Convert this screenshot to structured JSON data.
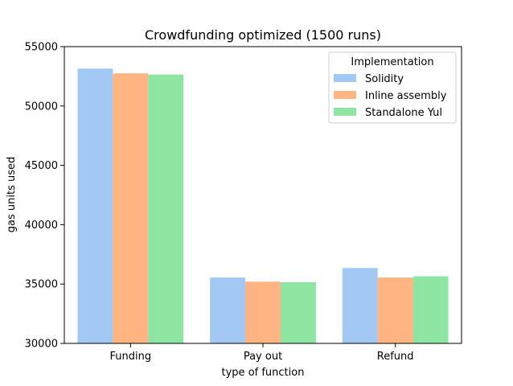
{
  "chart_data": {
    "type": "bar",
    "title": "Crowdfunding optimized (1500 runs)",
    "xlabel": "type of function",
    "ylabel": "gas units used",
    "categories": [
      "Funding",
      "Pay out",
      "Refund"
    ],
    "ylim": [
      30000,
      55000
    ],
    "yticks": [
      30000,
      35000,
      40000,
      45000,
      50000,
      55000
    ],
    "grid": false,
    "legend": {
      "title": "Implementation",
      "placement": "top-right"
    },
    "series": [
      {
        "name": "Solidity",
        "color": "#a1c9f4",
        "values": [
          53150,
          35550,
          36350
        ]
      },
      {
        "name": "Inline assembly",
        "color": "#ffb482",
        "values": [
          52750,
          35200,
          35550
        ]
      },
      {
        "name": "Standalone Yul",
        "color": "#8de5a1",
        "values": [
          52650,
          35150,
          35650
        ]
      }
    ]
  }
}
